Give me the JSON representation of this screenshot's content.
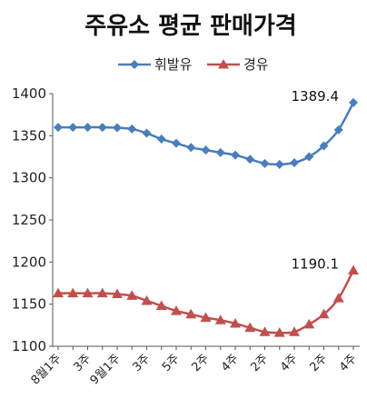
{
  "chart_data": {
    "type": "line",
    "title": "주유소 평균 판매가격",
    "x_tick_labels": [
      "8월1주",
      "",
      "3주",
      "",
      "9월1주",
      "",
      "3주",
      "",
      "5주",
      "",
      "2주",
      "",
      "4주",
      "",
      "2주",
      "",
      "4주",
      "",
      "2주",
      "",
      "4주"
    ],
    "series": [
      {
        "name": "휘발유",
        "color": "#4a7ebb",
        "marker": "diamond",
        "values": [
          1360.0,
          1360.0,
          1360.0,
          1360.0,
          1359.5,
          1358.0,
          1353.0,
          1346.0,
          1341.0,
          1336.0,
          1333.0,
          1330.0,
          1327.0,
          1322.0,
          1317.0,
          1316.0,
          1318.0,
          1325.0,
          1338.0,
          1357.0,
          1389.4
        ]
      },
      {
        "name": "경유",
        "color": "#c0504d",
        "marker": "triangle",
        "values": [
          1163.0,
          1163.0,
          1163.0,
          1163.0,
          1162.0,
          1160.0,
          1154.0,
          1148.0,
          1142.0,
          1138.0,
          1134.0,
          1131.0,
          1127.0,
          1122.0,
          1117.0,
          1116.0,
          1117.0,
          1126.0,
          1138.0,
          1157.0,
          1190.1
        ]
      }
    ],
    "ylim": [
      1100,
      1400
    ],
    "y_ticks": [
      1100,
      1150,
      1200,
      1250,
      1300,
      1350,
      1400
    ],
    "grid": false,
    "legend_position": "top",
    "annotations": [
      {
        "text": "1389.4",
        "series": 0,
        "index": 20
      },
      {
        "text": "1190.1",
        "series": 1,
        "index": 20
      }
    ]
  }
}
